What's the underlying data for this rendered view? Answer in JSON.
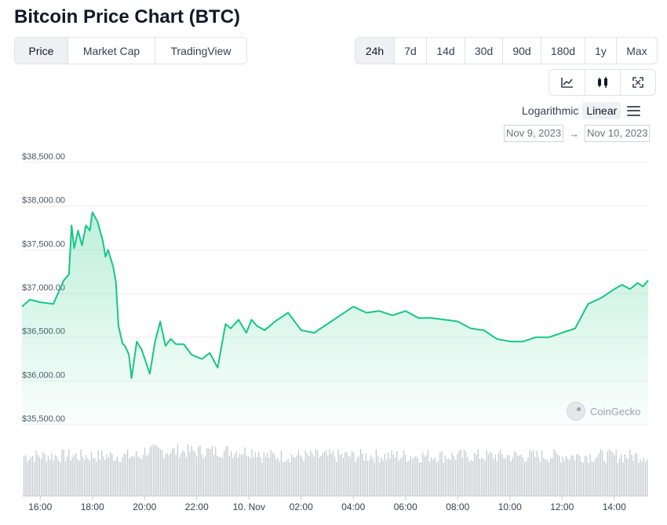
{
  "title": "Bitcoin Price Chart (BTC)",
  "type_tabs": [
    {
      "label": "Price",
      "active": true
    },
    {
      "label": "Market Cap",
      "active": false
    },
    {
      "label": "TradingView",
      "active": false
    }
  ],
  "range_tabs": [
    {
      "label": "24h",
      "active": true
    },
    {
      "label": "7d",
      "active": false
    },
    {
      "label": "14d",
      "active": false
    },
    {
      "label": "30d",
      "active": false
    },
    {
      "label": "90d",
      "active": false
    },
    {
      "label": "180d",
      "active": false
    },
    {
      "label": "1y",
      "active": false
    },
    {
      "label": "Max",
      "active": false
    }
  ],
  "view_buttons": [
    {
      "icon": "line-chart-icon",
      "active": true
    },
    {
      "icon": "candlestick-icon",
      "active": false
    },
    {
      "icon": "fullscreen-icon",
      "active": false
    }
  ],
  "scale": {
    "logarithmic": "Logarithmic",
    "linear": "Linear",
    "active": "Linear"
  },
  "date_range": {
    "from": "Nov 9, 2023",
    "arrow": "→",
    "to": "Nov 10, 2023"
  },
  "watermark": "CoinGecko",
  "colors": {
    "line": "#16c784",
    "fill": "#16c784",
    "volume": "#c2c6cc",
    "grid": "#eeeeee"
  },
  "chart_data": {
    "type": "area",
    "x_tick_labels": [
      "16:00",
      "18:00",
      "20:00",
      "22:00",
      "10. Nov",
      "02:00",
      "04:00",
      "06:00",
      "08:00",
      "10:00",
      "12:00",
      "14:00"
    ],
    "y_tick_labels": [
      "$38,500.00",
      "$38,000.00",
      "$37,500.00",
      "$37,000.00",
      "$36,500.00",
      "$36,000.00",
      "$35,500.00"
    ],
    "ylim": [
      35500,
      38500
    ],
    "x_range_hours": [
      15.3,
      39.3
    ],
    "grid": true,
    "series": [
      {
        "x": [
          15.3,
          15.6,
          16.0,
          16.5,
          16.9,
          17.1,
          17.2,
          17.3,
          17.45,
          17.6,
          17.75,
          17.9,
          18.0,
          18.2,
          18.4,
          18.5,
          18.6,
          18.8,
          18.9,
          19.0,
          19.15,
          19.25,
          19.4,
          19.5,
          19.7,
          19.9,
          20.2,
          20.4,
          20.6,
          20.8,
          21.0,
          21.2,
          21.5,
          21.8,
          22.2,
          22.5,
          22.8,
          23.1,
          23.3,
          23.6,
          23.9,
          24.1,
          24.3,
          24.6,
          25.0,
          25.5,
          26.0,
          26.5,
          27.0,
          27.5,
          28.0,
          28.5,
          29.0,
          29.5,
          30.0,
          30.5,
          31.0,
          31.5,
          32.0,
          32.5,
          33.0,
          33.5,
          34.0,
          34.5,
          35.0,
          35.5,
          36.0,
          36.5,
          37.0,
          37.5,
          38.0,
          38.3,
          38.6,
          38.9,
          39.1,
          39.3
        ],
        "values": [
          36850,
          36930,
          36900,
          36880,
          37150,
          37220,
          37780,
          37520,
          37720,
          37550,
          37780,
          37720,
          37930,
          37820,
          37600,
          37420,
          37500,
          37300,
          37130,
          36630,
          36430,
          36400,
          36300,
          36030,
          36450,
          36350,
          36080,
          36450,
          36680,
          36400,
          36480,
          36420,
          36420,
          36300,
          36250,
          36320,
          36150,
          36650,
          36600,
          36700,
          36550,
          36700,
          36630,
          36580,
          36680,
          36780,
          36580,
          36550,
          36650,
          36750,
          36850,
          36780,
          36800,
          36750,
          36800,
          36720,
          36720,
          36700,
          36680,
          36600,
          36580,
          36480,
          36450,
          36450,
          36500,
          36500,
          36550,
          36600,
          36880,
          36950,
          37050,
          37100,
          37050,
          37120,
          37080,
          37150
        ]
      }
    ]
  }
}
